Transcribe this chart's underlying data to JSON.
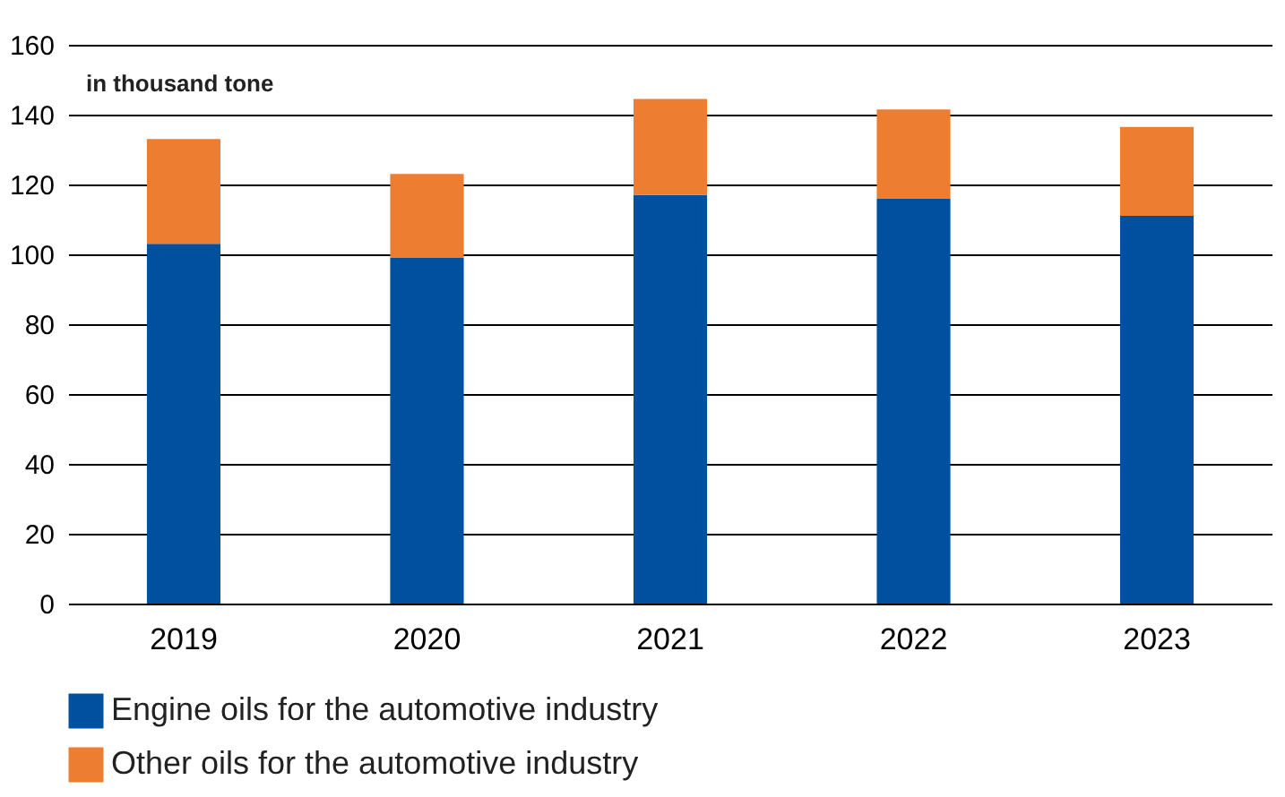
{
  "chart_data": {
    "type": "bar",
    "stacked": true,
    "categories": [
      "2019",
      "2020",
      "2021",
      "2022",
      "2023"
    ],
    "series": [
      {
        "name": "Engine oils for the automotive industry",
        "color": "#0050a0",
        "values": [
          103,
          99,
          117,
          116,
          111
        ]
      },
      {
        "name": "Other oils for the automotive industry",
        "color": "#ed7d31",
        "values": [
          30,
          24,
          27.5,
          25.5,
          25.5
        ]
      }
    ],
    "ylim": [
      0,
      160
    ],
    "yticks": [
      0,
      20,
      40,
      60,
      80,
      100,
      120,
      140,
      160
    ],
    "grid": "y",
    "legend": "bottom",
    "annotations": [
      "in thousand tone"
    ]
  }
}
